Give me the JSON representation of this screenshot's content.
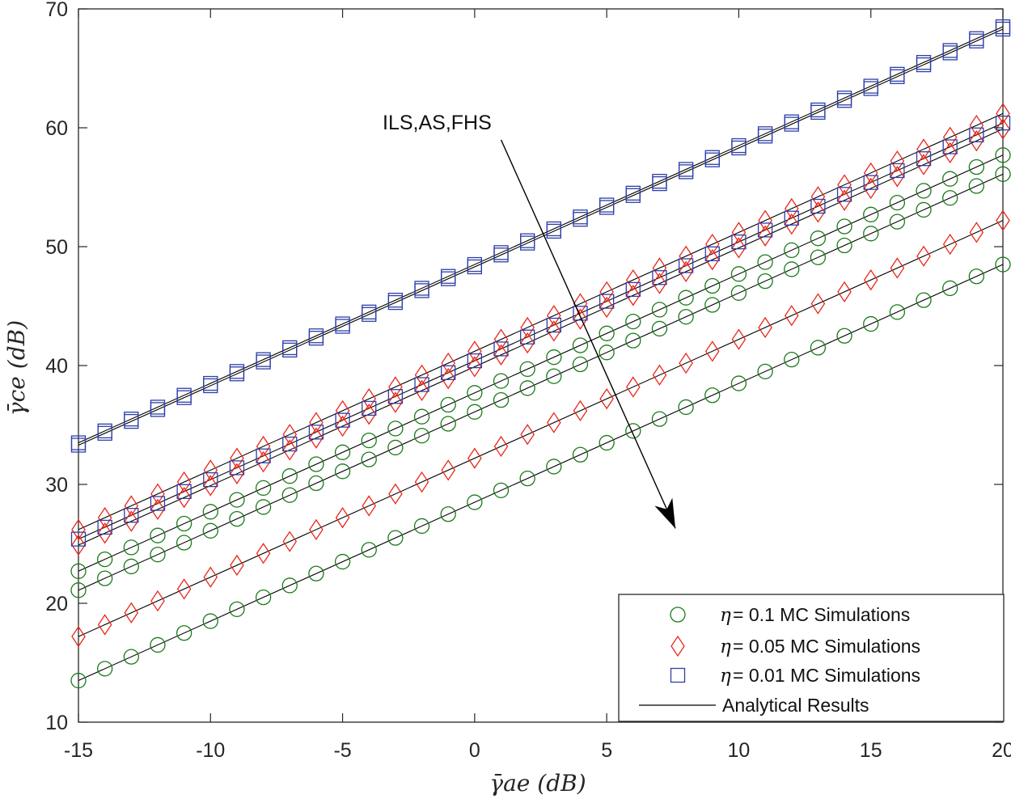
{
  "chart_data": {
    "type": "line",
    "xlabel": "γ̄ae (dB)",
    "ylabel": "γ̄ce (dB)",
    "xlim": [
      -15,
      20
    ],
    "ylim": [
      10,
      70
    ],
    "xticks": [
      -15,
      -10,
      -5,
      0,
      5,
      10,
      15,
      20
    ],
    "yticks": [
      10,
      20,
      30,
      40,
      50,
      60,
      70
    ],
    "xtick_labels": [
      "-15",
      "-10",
      "-5",
      "0",
      "5",
      "10",
      "15",
      "20"
    ],
    "ytick_labels": [
      "10",
      "20",
      "30",
      "40",
      "50",
      "60",
      "70"
    ],
    "grid": false,
    "annotation": {
      "text": "ILS,AS,FHS",
      "arrow_from": [
        1.0,
        51.3
      ],
      "arrow_to": [
        7.6,
        26.3
      ]
    },
    "x": [
      -15,
      -14,
      -13,
      -12,
      -11,
      -10,
      -9,
      -8,
      -7,
      -6,
      -5,
      -4,
      -3,
      -2,
      -1,
      0,
      1,
      2,
      3,
      4,
      5,
      6,
      7,
      8,
      9,
      10,
      11,
      12,
      13,
      14,
      15,
      16,
      17,
      18,
      19,
      20
    ],
    "series": [
      {
        "name": "η = 0.1",
        "marker": "circle",
        "color": "#1a7a1a",
        "scheme": "ILS",
        "start": 22.7,
        "end": 57.7
      },
      {
        "name": "η = 0.1",
        "marker": "circle",
        "color": "#1a7a1a",
        "scheme": "AS",
        "start": 21.1,
        "end": 56.1
      },
      {
        "name": "η = 0.1",
        "marker": "circle",
        "color": "#1a7a1a",
        "scheme": "FHS",
        "start": 13.5,
        "end": 48.5
      },
      {
        "name": "η = 0.05",
        "marker": "diamond",
        "color": "#e8281a",
        "scheme": "ILS",
        "start": 26.2,
        "end": 61.2
      },
      {
        "name": "η = 0.05",
        "marker": "diamond",
        "color": "#e8281a",
        "scheme": "AS",
        "start": 24.9,
        "end": 59.9
      },
      {
        "name": "η = 0.05",
        "marker": "diamond",
        "color": "#e8281a",
        "scheme": "FHS",
        "start": 17.2,
        "end": 52.2
      },
      {
        "name": "η = 0.01",
        "marker": "square",
        "color": "#2c3ea8",
        "scheme": "ILS",
        "start": 33.5,
        "end": 68.5
      },
      {
        "name": "η = 0.01",
        "marker": "square",
        "color": "#2c3ea8",
        "scheme": "AS",
        "start": 33.3,
        "end": 68.3
      },
      {
        "name": "η = 0.01",
        "marker": "square",
        "color": "#2c3ea8",
        "scheme": "FHS",
        "start": 25.4,
        "end": 60.4
      }
    ],
    "legend": {
      "position": "bottom-right",
      "entries": [
        {
          "marker": "circle",
          "color": "#1a7a1a",
          "label": " = 0.1 MC Simulations"
        },
        {
          "marker": "diamond",
          "color": "#e8281a",
          "label": " = 0.05 MC Simulations"
        },
        {
          "marker": "square",
          "color": "#2c3ea8",
          "label": " = 0.01 MC Simulations"
        },
        {
          "marker": "line",
          "color": "#000000",
          "label": "Analytical Results"
        }
      ]
    }
  },
  "colors": {
    "axis": "#262626",
    "analytical": "#000000"
  },
  "icons": {
    "eta_symbol": "η"
  }
}
